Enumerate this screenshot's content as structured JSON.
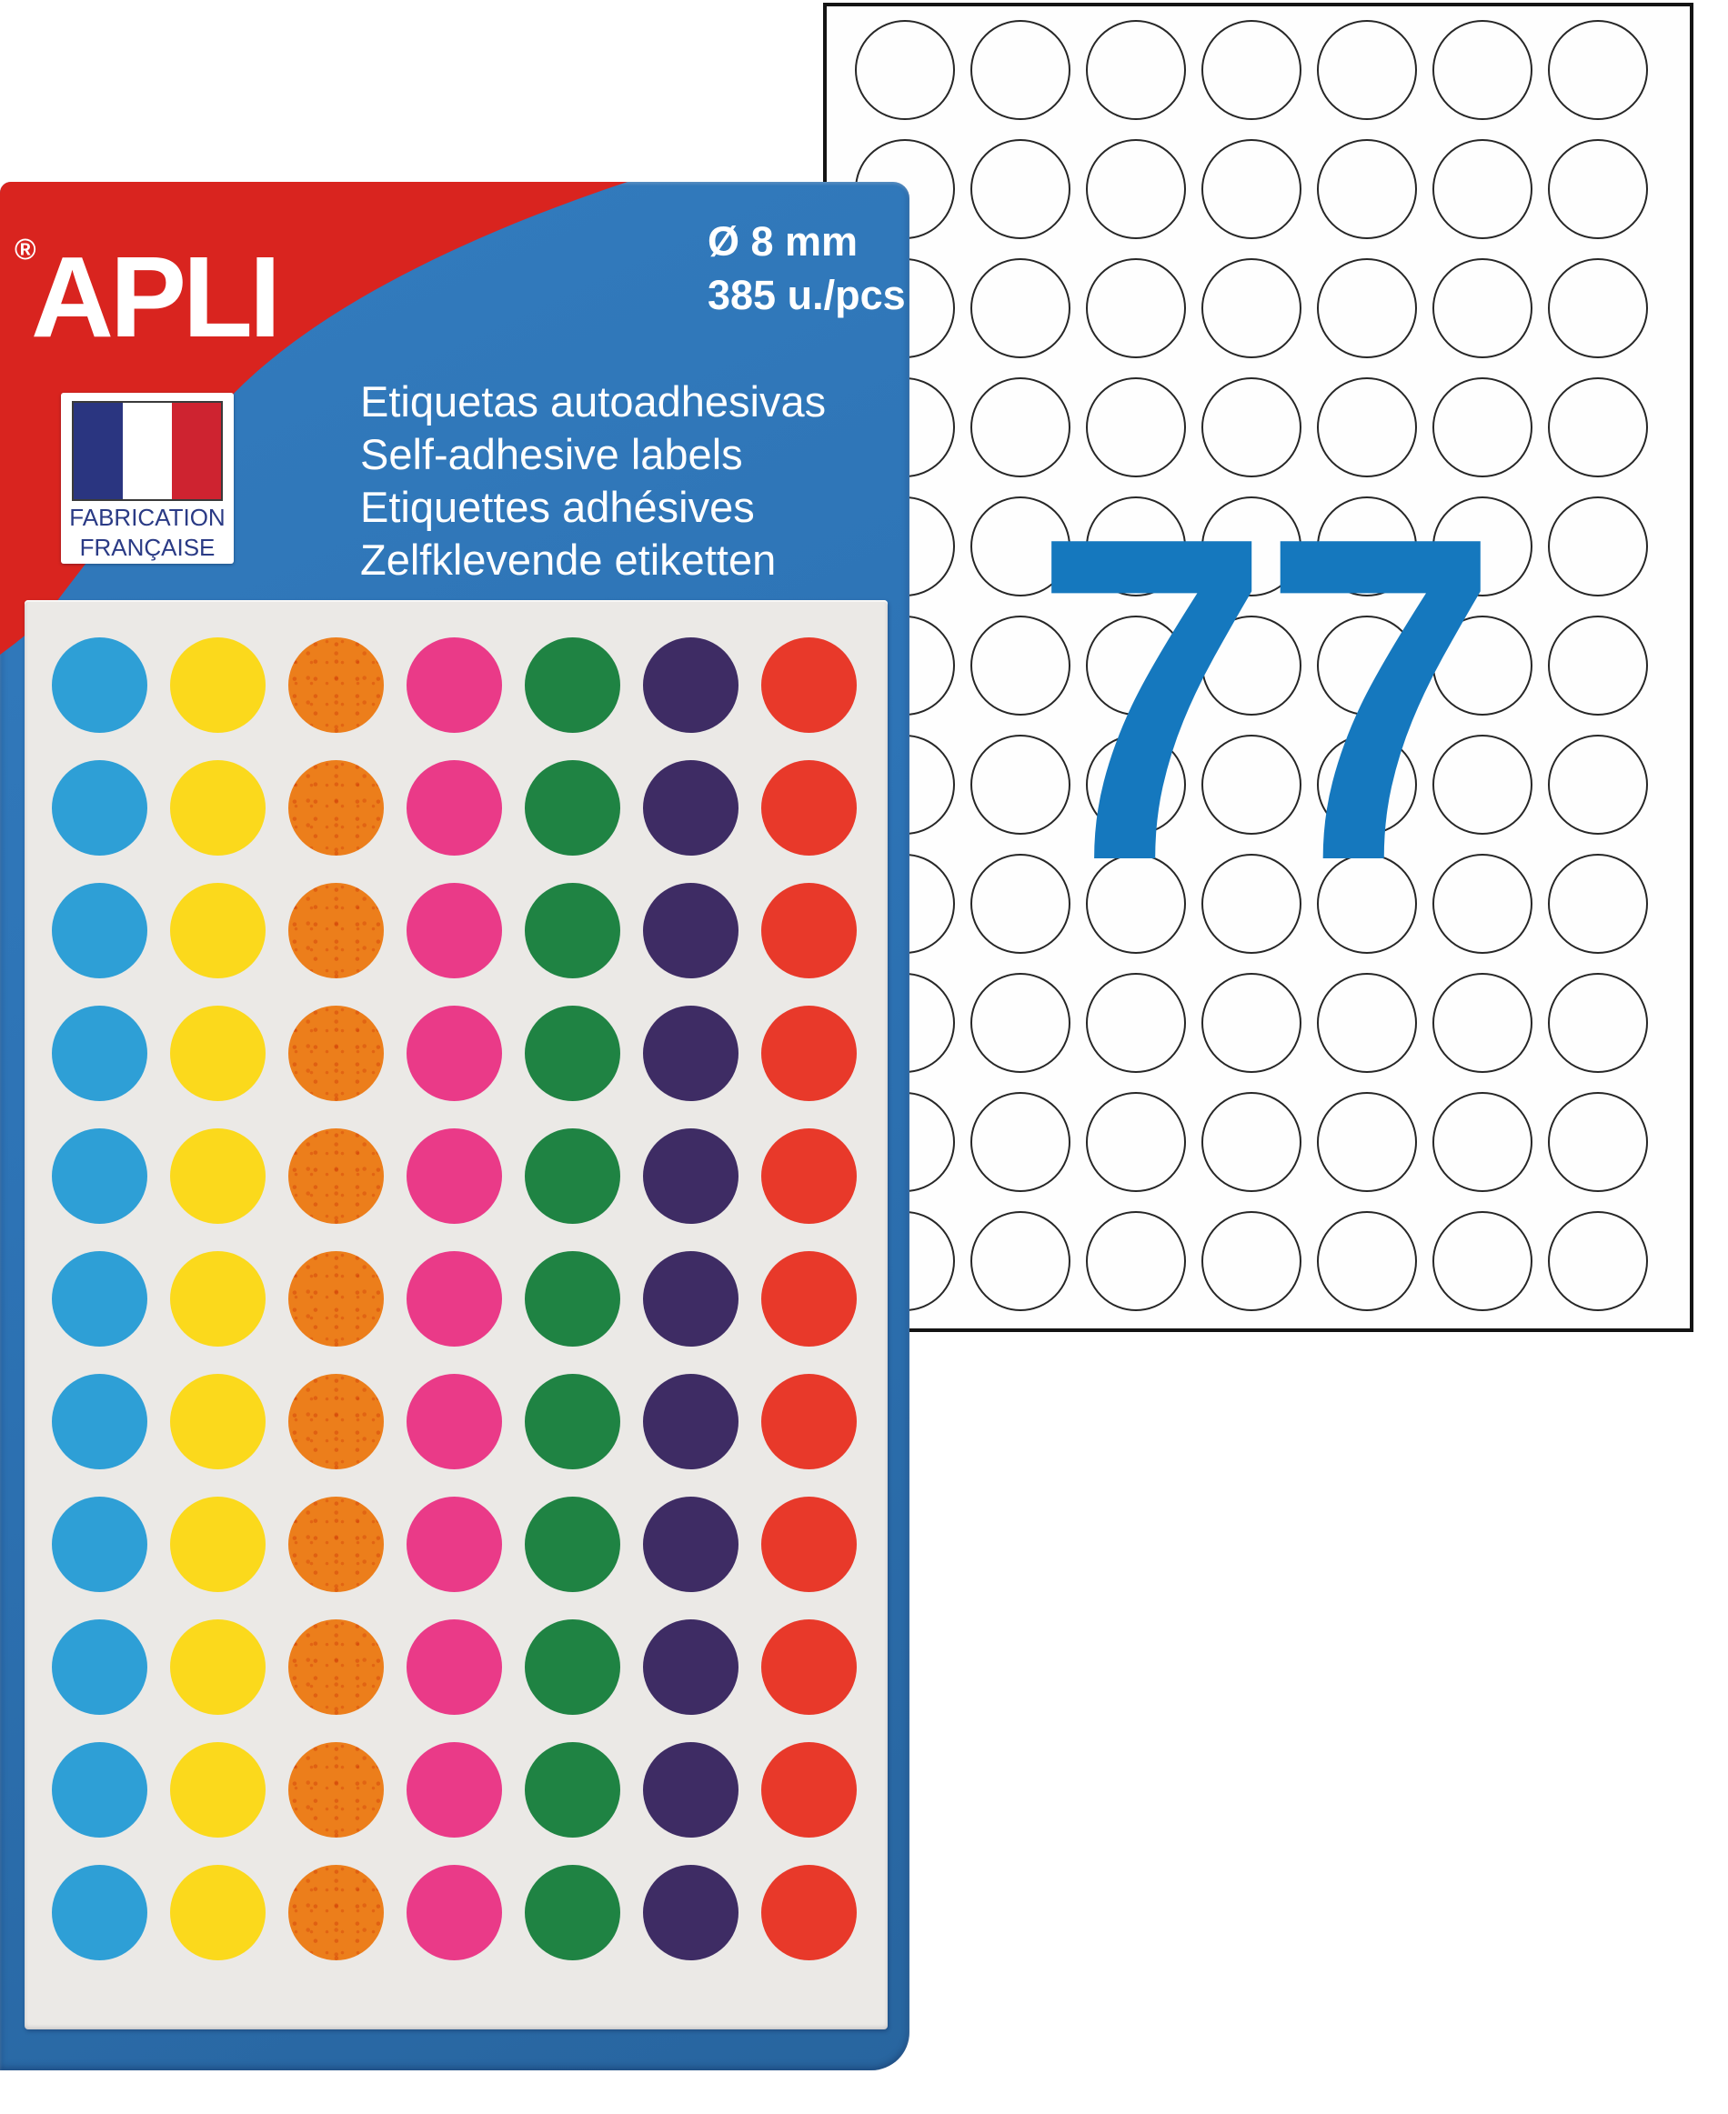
{
  "package": {
    "brand": "APLI",
    "registered_mark": "®",
    "diameter": "Ø 8 mm",
    "quantity": "385 u./pcs",
    "product_lines": [
      "Etiquetas autoadhesivas",
      "Self-adhesive labels",
      "Etiquettes adhésives",
      "Zelfklevende etiketten"
    ],
    "badge": {
      "line1": "FABRICATION",
      "line2": "FRANÇAISE",
      "text_color": "#2a3a85",
      "flag_blue": "#2a3580",
      "flag_white": "#ffffff",
      "flag_red": "#ce2330"
    },
    "colors": {
      "package_red": "#d9241f",
      "package_blue": "#2d73b5",
      "text_white": "#ffffff"
    }
  },
  "dot_sheet": {
    "columns": 7,
    "rows": 11,
    "background": "#ebe9e6",
    "column_colors": [
      {
        "name": "blue",
        "hex": "#2e9fd6"
      },
      {
        "name": "yellow",
        "hex": "#fbd91c"
      },
      {
        "name": "orange",
        "hex": "#ec7e1b"
      },
      {
        "name": "pink",
        "hex": "#ea3a88"
      },
      {
        "name": "green",
        "hex": "#1f8343"
      },
      {
        "name": "purple",
        "hex": "#3e2c64"
      },
      {
        "name": "red",
        "hex": "#e8392a"
      }
    ]
  },
  "blank_sheet": {
    "count": "77",
    "columns": 7,
    "rows": 11,
    "count_color": "#1578be",
    "circle_stroke": "#272727",
    "border_color": "#141414"
  }
}
